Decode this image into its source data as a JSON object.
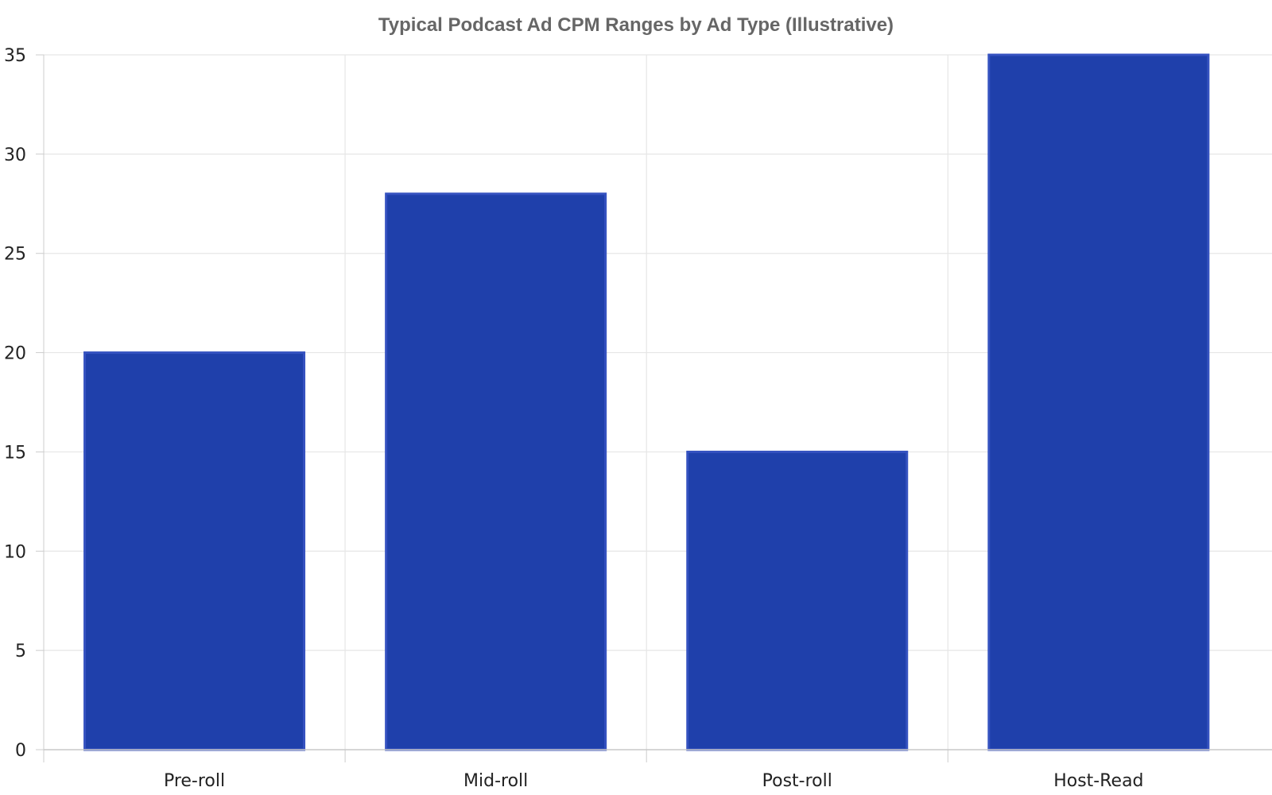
{
  "chart_data": {
    "type": "bar",
    "title": "Typical Podcast Ad CPM Ranges by Ad Type (Illustrative)",
    "xlabel": "",
    "ylabel": "",
    "categories": [
      "Pre-roll",
      "Mid-roll",
      "Post-roll",
      "Host-Read"
    ],
    "values": [
      20,
      28,
      15,
      35
    ],
    "ylim": [
      0,
      35
    ],
    "yticks": [
      0,
      5,
      10,
      15,
      20,
      25,
      30,
      35
    ],
    "grid": true,
    "legend": "none",
    "bar_color": "#1f40ab",
    "bar_edge_color": "#3552c0"
  }
}
